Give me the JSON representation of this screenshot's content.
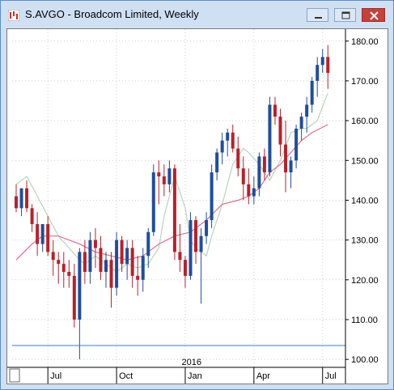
{
  "window": {
    "title": "S.AVGO - Broadcom Limited, Weekly",
    "buttons": {
      "minimize": "minimize",
      "maximize": "maximize",
      "close": "close"
    }
  },
  "colors": {
    "up": "#1f4e9c",
    "down": "#b8212a",
    "ma_fast": "#b9d4b9",
    "ma_slow": "#e06a9a",
    "hline": "#3b78c8",
    "grid": "#cfcfcf"
  },
  "chart_data": {
    "type": "candlestick",
    "title": "S.AVGO - Broadcom Limited, Weekly",
    "ylim": [
      98,
      183
    ],
    "y_ticks": [
      "180.00",
      "170.00",
      "160.00",
      "150.00",
      "140.00",
      "130.00",
      "120.00",
      "110.00",
      "100.00"
    ],
    "y_tick_values": [
      180,
      170,
      160,
      150,
      140,
      130,
      120,
      110,
      100
    ],
    "x_ticks": [
      {
        "label": "Jul",
        "index": 6
      },
      {
        "label": "Oct",
        "index": 19
      },
      {
        "label": "Jan",
        "index": 32
      },
      {
        "label": "Apr",
        "index": 45
      },
      {
        "label": "Jul",
        "index": 58
      }
    ],
    "year_label": {
      "label": "2016",
      "index": 33
    },
    "horizontal_line": 103.5,
    "candles": [
      [
        141,
        144,
        137,
        138
      ],
      [
        138,
        143,
        136,
        143
      ],
      [
        143,
        145,
        137,
        138
      ],
      [
        138,
        139,
        132,
        134
      ],
      [
        134,
        137,
        126,
        129
      ],
      [
        129,
        134,
        127,
        134
      ],
      [
        134,
        136,
        126,
        127
      ],
      [
        127,
        130,
        121,
        125
      ],
      [
        125,
        127,
        119,
        124
      ],
      [
        124,
        127,
        118,
        122
      ],
      [
        122,
        125,
        118,
        121
      ],
      [
        121,
        124,
        108,
        110
      ],
      [
        110,
        128,
        100,
        127
      ],
      [
        127,
        130,
        119,
        122
      ],
      [
        122,
        132,
        119,
        130
      ],
      [
        130,
        133,
        123,
        128
      ],
      [
        128,
        131,
        120,
        122
      ],
      [
        122,
        127,
        118,
        125
      ],
      [
        125,
        127,
        113,
        118
      ],
      [
        118,
        132,
        116,
        130
      ],
      [
        130,
        131,
        122,
        124
      ],
      [
        124,
        130,
        120,
        128
      ],
      [
        128,
        130,
        118,
        121
      ],
      [
        121,
        126,
        116,
        120
      ],
      [
        120,
        128,
        117,
        126
      ],
      [
        126,
        133,
        123,
        132
      ],
      [
        132,
        149,
        131,
        147
      ],
      [
        147,
        150,
        139,
        146
      ],
      [
        146,
        149,
        141,
        144
      ],
      [
        144,
        150,
        142,
        148
      ],
      [
        148,
        149,
        125,
        127
      ],
      [
        127,
        134,
        122,
        125
      ],
      [
        125,
        126,
        118,
        121
      ],
      [
        121,
        137,
        120,
        135
      ],
      [
        135,
        136,
        124,
        127
      ],
      [
        127,
        133,
        114,
        131
      ],
      [
        131,
        137,
        129,
        135
      ],
      [
        135,
        149,
        133,
        147
      ],
      [
        147,
        153,
        145,
        152
      ],
      [
        152,
        157,
        149,
        155
      ],
      [
        155,
        158,
        151,
        157
      ],
      [
        157,
        159,
        152,
        153
      ],
      [
        153,
        156,
        146,
        148
      ],
      [
        148,
        151,
        140,
        144
      ],
      [
        144,
        148,
        139,
        141
      ],
      [
        141,
        146,
        139,
        143
      ],
      [
        143,
        152,
        141,
        151
      ],
      [
        151,
        153,
        145,
        147
      ],
      [
        147,
        166,
        146,
        164
      ],
      [
        164,
        166,
        159,
        161
      ],
      [
        161,
        163,
        151,
        154
      ],
      [
        154,
        160,
        142,
        147
      ],
      [
        147,
        151,
        143,
        150
      ],
      [
        150,
        159,
        148,
        158
      ],
      [
        158,
        162,
        155,
        161
      ],
      [
        161,
        166,
        157,
        164
      ],
      [
        164,
        171,
        162,
        170
      ],
      [
        170,
        176,
        166,
        174
      ],
      [
        174,
        178,
        172,
        176
      ],
      [
        176,
        179,
        168,
        172
      ]
    ],
    "ma_fast": [
      [
        0,
        144
      ],
      [
        2,
        146
      ],
      [
        4,
        141
      ],
      [
        6,
        136
      ],
      [
        8,
        131
      ],
      [
        10,
        128
      ],
      [
        12,
        125
      ],
      [
        13,
        124
      ],
      [
        15,
        126
      ],
      [
        17,
        124
      ],
      [
        19,
        122
      ],
      [
        21,
        124
      ],
      [
        23,
        123
      ],
      [
        25,
        124
      ],
      [
        27,
        128
      ],
      [
        28,
        136
      ],
      [
        30,
        146
      ],
      [
        32,
        138
      ],
      [
        33,
        130
      ],
      [
        34,
        128
      ],
      [
        36,
        126
      ],
      [
        37,
        131
      ],
      [
        39,
        139
      ],
      [
        41,
        149
      ],
      [
        43,
        153
      ],
      [
        44,
        152
      ],
      [
        46,
        149
      ],
      [
        48,
        145
      ],
      [
        50,
        150
      ],
      [
        52,
        157
      ],
      [
        54,
        158
      ],
      [
        55,
        158
      ],
      [
        57,
        160
      ],
      [
        59,
        167
      ]
    ],
    "ma_slow": [
      [
        0,
        125
      ],
      [
        3,
        129
      ],
      [
        5,
        131
      ],
      [
        8,
        131
      ],
      [
        12,
        129
      ],
      [
        15,
        127
      ],
      [
        18,
        126
      ],
      [
        21,
        125
      ],
      [
        24,
        126
      ],
      [
        27,
        129
      ],
      [
        30,
        131
      ],
      [
        33,
        132
      ],
      [
        36,
        135
      ],
      [
        39,
        139
      ],
      [
        42,
        140
      ],
      [
        44,
        141
      ],
      [
        46,
        143
      ],
      [
        48,
        147
      ],
      [
        50,
        149
      ],
      [
        52,
        152
      ],
      [
        54,
        155
      ],
      [
        56,
        157
      ],
      [
        59,
        159
      ]
    ]
  }
}
